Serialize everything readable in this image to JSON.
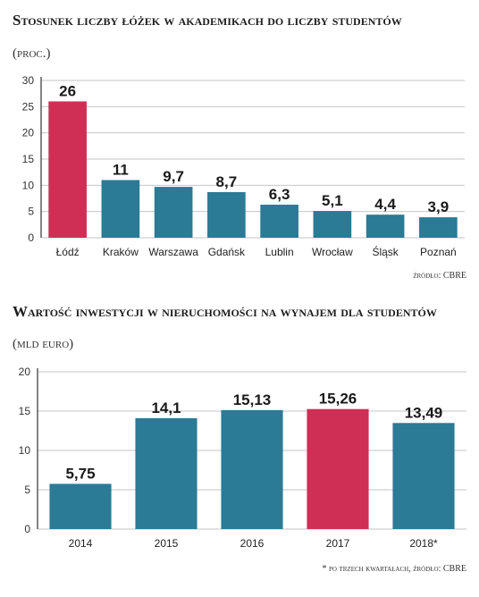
{
  "chart1": {
    "title": "Stosunek liczby łóżek w akademikach do liczby studentów",
    "unit": "(proc.)",
    "source": "źródło: CBRE"
  },
  "chart2": {
    "title": "Wartość inwestycji w nieruchomości na wynajem dla studentów",
    "unit": "(mld euro)",
    "source": "* po trzech kwartałach, źródło: CBRE"
  },
  "colors": {
    "highlight": "#cf2f55",
    "bar": "#2b7a96",
    "grid": "#c6c6c6",
    "axis": "#333333"
  },
  "chart_data": [
    {
      "type": "bar",
      "title": "Stosunek liczby łóżek w akademikach do liczby studentów",
      "ylabel": "(proc.)",
      "categories": [
        "Łódź",
        "Kraków",
        "Warszawa",
        "Gdańsk",
        "Lublin",
        "Wrocław",
        "Śląsk",
        "Poznań"
      ],
      "values": [
        26,
        11,
        9.7,
        8.7,
        6.3,
        5.1,
        4.4,
        3.9
      ],
      "value_labels": [
        "26",
        "11",
        "9,7",
        "8,7",
        "6,3",
        "5,1",
        "4,4",
        "3,9"
      ],
      "highlight": [
        0
      ],
      "ylim": [
        0,
        30
      ],
      "yticks": [
        0,
        5,
        10,
        15,
        20,
        25,
        30
      ],
      "grid": true
    },
    {
      "type": "bar",
      "title": "Wartość inwestycji w nieruchomości na wynajem dla studentów",
      "ylabel": "(mld euro)",
      "categories": [
        "2014",
        "2015",
        "2016",
        "2017",
        "2018*"
      ],
      "values": [
        5.75,
        14.1,
        15.13,
        15.26,
        13.49
      ],
      "value_labels": [
        "5,75",
        "14,1",
        "15,13",
        "15,26",
        "13,49"
      ],
      "highlight": [
        3
      ],
      "ylim": [
        0,
        20
      ],
      "yticks": [
        0,
        5,
        10,
        15,
        20
      ],
      "grid": true
    }
  ]
}
